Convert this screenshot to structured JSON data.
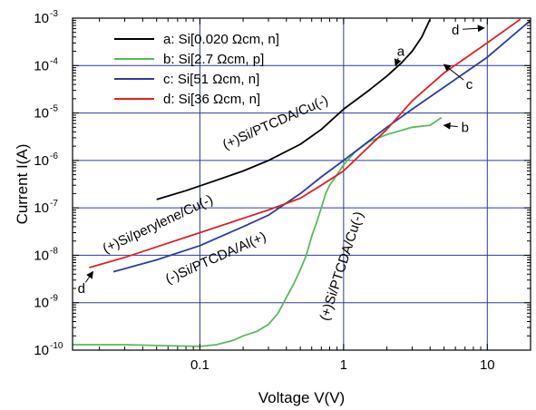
{
  "chart_data": {
    "type": "line",
    "xlabel": "Voltage V(V)",
    "ylabel": "Current I(A)",
    "x_scale": "log",
    "y_scale": "log",
    "xlim": [
      0.013,
      20
    ],
    "ylim": [
      1e-10,
      0.001
    ],
    "grid": true,
    "legend_position": "top-left",
    "x_ticks": [
      {
        "value": 0.1,
        "label": "0.1"
      },
      {
        "value": 1,
        "label": "1"
      },
      {
        "value": 10,
        "label": "10"
      }
    ],
    "y_ticks": [
      {
        "value": 1e-10,
        "base": "10",
        "exp": "-10"
      },
      {
        "value": 1e-09,
        "base": "10",
        "exp": "-9"
      },
      {
        "value": 1e-08,
        "base": "10",
        "exp": "-8"
      },
      {
        "value": 1e-07,
        "base": "10",
        "exp": "-7"
      },
      {
        "value": 1e-06,
        "base": "10",
        "exp": "-6"
      },
      {
        "value": 1e-05,
        "base": "10",
        "exp": "-5"
      },
      {
        "value": 0.0001,
        "base": "10",
        "exp": "-4"
      },
      {
        "value": 0.001,
        "base": "10",
        "exp": "-3"
      }
    ],
    "series": [
      {
        "name": "a: Si[0.020 Ωcm, n]",
        "color": "#000000",
        "x": [
          0.05,
          0.08,
          0.12,
          0.2,
          0.3,
          0.5,
          0.7,
          1.0,
          1.5,
          2.0,
          2.5,
          3.0,
          3.5,
          4.0
        ],
        "y": [
          1.5e-07,
          2.3e-07,
          3.5e-07,
          6e-07,
          1e-06,
          2.2e-06,
          4.5e-06,
          1.2e-05,
          3e-05,
          6e-05,
          0.00011,
          0.0002,
          0.0004,
          0.00095
        ]
      },
      {
        "name": "b: Si[2.7 Ωcm, p]",
        "color": "#5cb85c",
        "x": [
          0.013,
          0.03,
          0.05,
          0.08,
          0.1,
          0.13,
          0.17,
          0.2,
          0.25,
          0.3,
          0.35,
          0.4,
          0.45,
          0.5,
          0.55,
          0.6,
          0.65,
          0.7,
          0.75,
          0.8,
          0.9,
          1.0,
          1.2,
          1.5,
          2.0,
          3.0,
          4.0,
          4.8
        ],
        "y": [
          1.3e-10,
          1.3e-10,
          1.25e-10,
          1.22e-10,
          1.2e-10,
          1.3e-10,
          1.6e-10,
          2e-10,
          2.5e-10,
          3.5e-10,
          6e-10,
          1.3e-09,
          2.5e-09,
          5e-09,
          1e-08,
          2.5e-08,
          5e-08,
          1e-07,
          2e-07,
          3e-07,
          5e-07,
          8e-07,
          1.5e-06,
          2.5e-06,
          3.5e-06,
          5e-06,
          5.5e-06,
          8e-06
        ]
      },
      {
        "name": "c: Si[51 Ωcm, n]",
        "color": "#2b3d9e",
        "x": [
          0.025,
          0.05,
          0.1,
          0.2,
          0.3,
          0.5,
          0.7,
          1.0,
          2.0,
          3.0,
          5.0,
          10.0,
          20.0
        ],
        "y": [
          4.5e-09,
          8e-09,
          1.6e-08,
          4e-08,
          7e-08,
          2e-07,
          4.5e-07,
          1e-06,
          5e-06,
          1.2e-05,
          3.5e-05,
          0.00015,
          0.0009
        ]
      },
      {
        "name": "d: Si[36 Ωcm, n]",
        "color": "#e02020",
        "x": [
          0.017,
          0.03,
          0.05,
          0.1,
          0.2,
          0.3,
          0.5,
          0.7,
          1.0,
          2.0,
          3.0,
          5.0,
          10.0,
          17.0
        ],
        "y": [
          5.5e-09,
          9e-09,
          1.5e-08,
          3e-08,
          6e-08,
          9e-08,
          1.6e-07,
          3e-07,
          6e-07,
          4.5e-06,
          1.8e-05,
          7e-05,
          0.0003,
          0.00095
        ]
      }
    ],
    "annotations": [
      {
        "id": "a",
        "text": "a",
        "x": 2.5,
        "y": 0.0002,
        "arrow_to": {
          "x": 2.3,
          "y": 0.0001
        }
      },
      {
        "id": "b",
        "text": "b",
        "x": 7.0,
        "y": 5e-06,
        "arrow_to": {
          "x": 5.0,
          "y": 5.5e-06
        }
      },
      {
        "id": "c",
        "text": "c",
        "x": 7.5,
        "y": 4e-05,
        "arrow_to": {
          "x": 5.0,
          "y": 0.000105
        }
      },
      {
        "id": "d-top",
        "text": "d",
        "x": 6.0,
        "y": 0.00057,
        "arrow_to": {
          "x": 9.5,
          "y": 0.00062
        }
      },
      {
        "id": "d-bottom",
        "text": "d",
        "x": 0.015,
        "y": 2e-09,
        "arrow_to": {
          "x": 0.018,
          "y": 4.5e-09
        }
      }
    ],
    "curve_labels": [
      {
        "id": "label-si-ptcda-cu-upper",
        "text": "(+)Si/PTCDA/Cu(-)",
        "x": 0.15,
        "y": 1.7e-06,
        "angle": -24
      },
      {
        "id": "label-si-perylene-cu",
        "text": "(+)Si/perylene/Cu(-)",
        "x": 0.022,
        "y": 1.1e-08,
        "angle": -25
      },
      {
        "id": "label-si-ptcda-al",
        "text": "(-)Si/PTCDA/Al(+)",
        "x": 0.06,
        "y": 2.5e-09,
        "angle": -24
      },
      {
        "id": "label-si-ptcda-cu-lower",
        "text": "(+)Si/PTCDA/Cu(-)",
        "x": 0.78,
        "y": 4e-10,
        "angle": -72
      }
    ]
  }
}
